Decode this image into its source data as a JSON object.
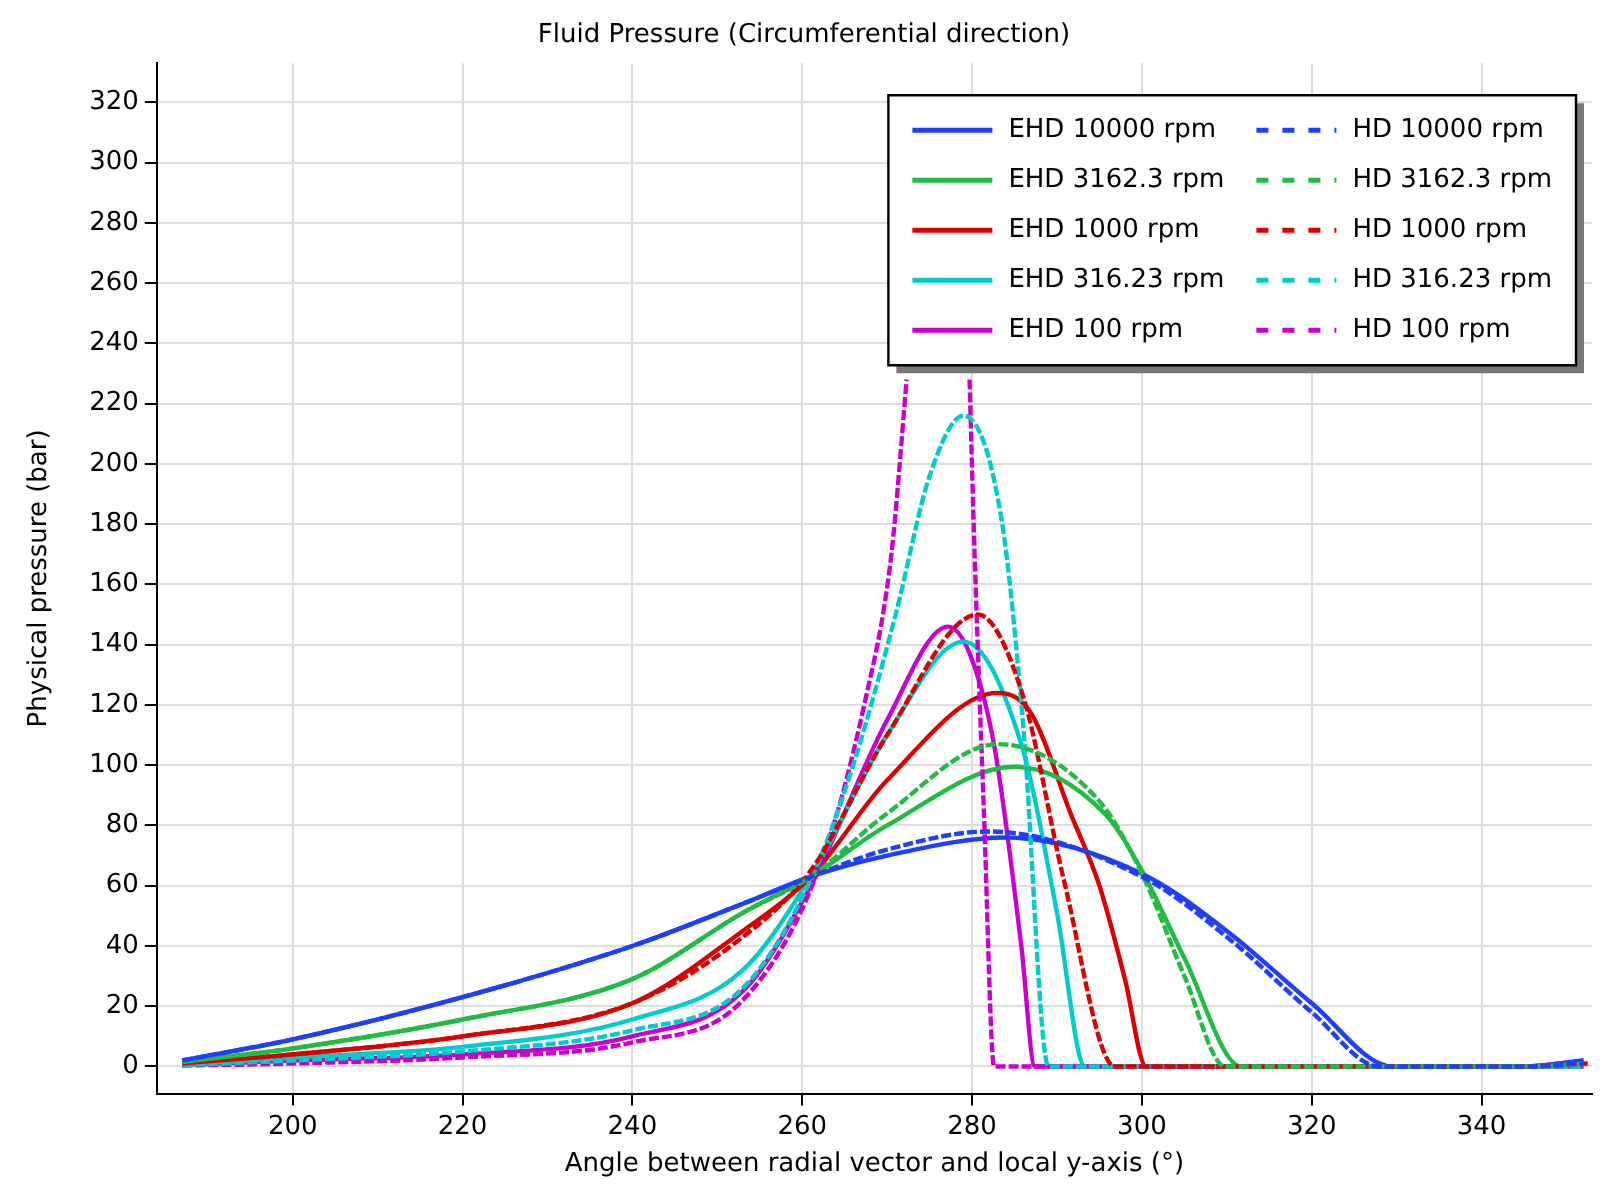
{
  "chart_data": {
    "type": "line",
    "title": "Fluid Pressure (Circumferential direction)",
    "xlabel": "Angle between radial vector and local y-axis (°)",
    "ylabel": "Physical pressure (bar)",
    "xlim": [
      184,
      353
    ],
    "ylim": [
      -9,
      333
    ],
    "xticks": [
      200,
      220,
      240,
      260,
      280,
      300,
      320,
      340
    ],
    "yticks": [
      0,
      20,
      40,
      60,
      80,
      100,
      120,
      140,
      160,
      180,
      200,
      220,
      240,
      260,
      280,
      300,
      320
    ],
    "grid": true,
    "legend": "top right",
    "marker": "none",
    "series": [
      {
        "name": "EHD 10000 rpm",
        "color": "#1f3fff",
        "line_style": "solid",
        "x": [
          187,
          200,
          220,
          240,
          253,
          261,
          270,
          284,
          300,
          310,
          320,
          329.5,
          345,
          352
        ],
        "values": [
          2,
          9,
          23,
          40,
          54,
          63,
          70,
          76,
          64,
          45,
          21,
          0,
          0,
          2
        ]
      },
      {
        "name": "HD 10000 rpm",
        "color": "#1f3fff",
        "line_style": "dashed",
        "x": [
          187,
          200,
          220,
          240,
          253,
          261,
          270,
          282,
          300,
          310,
          320,
          328,
          345,
          352
        ],
        "values": [
          2,
          9,
          23,
          40,
          54,
          63,
          72,
          78,
          63,
          43,
          18,
          0,
          0,
          1
        ]
      },
      {
        "name": "EHD 3162.3 rpm",
        "color": "#22bb44",
        "line_style": "solid",
        "x": [
          187,
          200,
          220,
          240,
          253,
          261,
          270,
          285,
          295.6,
          300,
          305,
          311.7,
          345,
          352
        ],
        "values": [
          1.5,
          6,
          15.6,
          29,
          51,
          63,
          80,
          99.5,
          84,
          65,
          36,
          0,
          0,
          1
        ]
      },
      {
        "name": "HD 3162.3 rpm",
        "color": "#22bb44",
        "line_style": "dashed",
        "x": [
          187,
          200,
          220,
          240,
          253,
          261,
          270,
          283,
          295,
          300,
          305,
          309.8,
          345,
          352
        ],
        "values": [
          1.5,
          6,
          15.6,
          29,
          51,
          63,
          84,
          107,
          88,
          64,
          30,
          0,
          0,
          1
        ]
      },
      {
        "name": "EHD 1000 rpm",
        "color": "#dd0000",
        "line_style": "solid",
        "x": [
          187,
          200,
          220,
          240,
          253,
          261,
          270,
          283,
          287,
          291.6,
          295,
          298,
          300.5,
          345,
          352
        ],
        "values": [
          1,
          4,
          10,
          21,
          45,
          63,
          95,
          124,
          117,
          84,
          60,
          29,
          0,
          0,
          1
        ]
      },
      {
        "name": "HD 1000 rpm",
        "color": "#dd0000",
        "line_style": "dashed",
        "x": [
          187,
          200,
          220,
          240,
          253,
          261,
          270,
          280.7,
          286,
          290.8,
          296.8,
          345,
          352.5
        ],
        "values": [
          1,
          4,
          10,
          21,
          43,
          65,
          110,
          150,
          123,
          62,
          0,
          0,
          1
        ]
      },
      {
        "name": "EHD 316.23 rpm",
        "color": "#00cccc",
        "line_style": "solid",
        "x": [
          187,
          200,
          220,
          240,
          253,
          261,
          270,
          279,
          286,
          290,
          293.3,
          345,
          352
        ],
        "values": [
          0.5,
          3,
          6.5,
          15.6,
          32,
          63,
          110,
          141,
          105,
          51,
          0,
          0,
          0
        ]
      },
      {
        "name": "HD 316.23 rpm",
        "color": "#00cccc",
        "line_style": "dashed",
        "x": [
          187,
          200,
          220,
          240,
          253,
          261,
          266,
          271,
          275,
          279,
          283.5,
          286,
          289,
          345,
          352
        ],
        "values": [
          0.5,
          2,
          5,
          12,
          26,
          62,
          100,
          150,
          196,
          216,
          181,
          114,
          0,
          0,
          0
        ]
      },
      {
        "name": "EHD 100 rpm",
        "color": "#cc00cc",
        "line_style": "solid",
        "x": [
          187,
          200,
          220,
          240,
          253,
          261,
          270,
          277.2,
          280,
          282.7,
          285.8,
          287.4,
          345,
          352
        ],
        "values": [
          0.5,
          2,
          4,
          10,
          25,
          60,
          115,
          146,
          135,
          105,
          40,
          0,
          0,
          2
        ]
      },
      {
        "name": "HD 100 rpm",
        "color": "#cc00cc",
        "line_style": "dashed",
        "x": [
          187,
          200,
          220,
          240,
          253,
          262,
          267.3,
          270.5,
          272.3,
          276,
          279.7,
          280.3,
          281.4,
          282.6,
          352
        ],
        "values": [
          0.3,
          1,
          3,
          8,
          22,
          66,
          120,
          170,
          228,
          null,
          228,
          170,
          84,
          0,
          0
        ]
      }
    ]
  }
}
